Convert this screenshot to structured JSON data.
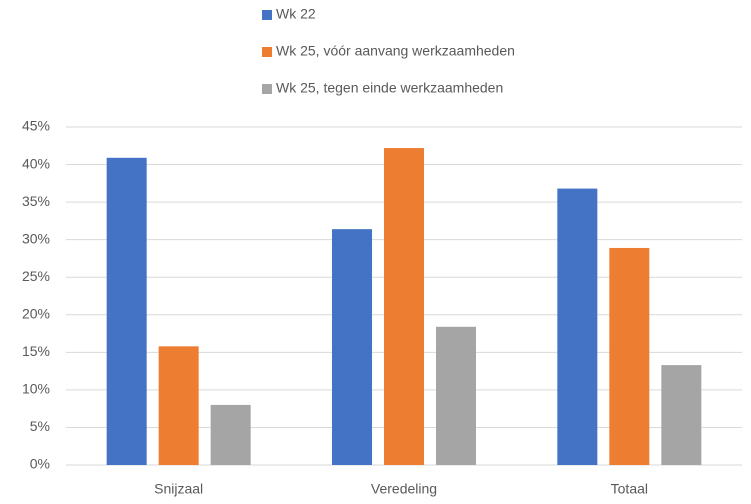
{
  "chart_data": {
    "type": "bar",
    "categories": [
      "Snijzaal",
      "Veredeling",
      "Totaal"
    ],
    "series": [
      {
        "name": "Wk 22",
        "color": "#4472c4",
        "values": [
          40.9,
          31.4,
          36.8
        ]
      },
      {
        "name": "Wk 25, vóór aanvang werkzaamheden",
        "color": "#ed7d31",
        "values": [
          15.8,
          42.2,
          28.9
        ]
      },
      {
        "name": "Wk 25, tegen einde werkzaamheden",
        "color": "#a5a5a5",
        "values": [
          8,
          18.4,
          13.3
        ]
      }
    ],
    "ylim": [
      0,
      45
    ],
    "yticks": [
      {
        "value": 0,
        "label": "0%"
      },
      {
        "value": 5,
        "label": "5%"
      },
      {
        "value": 10,
        "label": "10%"
      },
      {
        "value": 15,
        "label": "15%"
      },
      {
        "value": 20,
        "label": "20%"
      },
      {
        "value": 25,
        "label": "25%"
      },
      {
        "value": 30,
        "label": "30%"
      },
      {
        "value": 35,
        "label": "35%"
      },
      {
        "value": 40,
        "label": "40%"
      },
      {
        "value": 45,
        "label": "45%"
      }
    ],
    "grid": true,
    "legend": "top"
  }
}
